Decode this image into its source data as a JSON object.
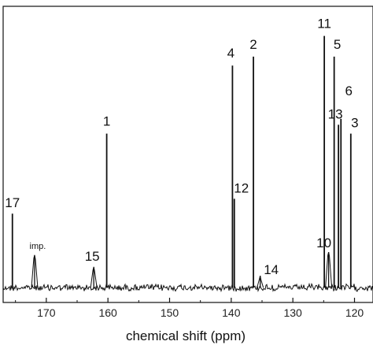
{
  "chart_data": {
    "type": "line",
    "title": "",
    "xlabel": "chemical shift (ppm)",
    "ylabel": "",
    "xlim": [
      177,
      117
    ],
    "x_reversed": true,
    "ylim": [
      0,
      1
    ],
    "grid": false,
    "legend": "none",
    "x_ticks": [
      170,
      160,
      150,
      140,
      130,
      120
    ],
    "baseline": 0.05,
    "series": [
      {
        "peaks": [
          {
            "label": "17",
            "x": 175.5,
            "height": 0.25
          },
          {
            "label": "imp.",
            "x": 171.9,
            "height": 0.11
          },
          {
            "label": "15",
            "x": 162.3,
            "height": 0.07
          },
          {
            "label": "1",
            "x": 160.2,
            "height": 0.52
          },
          {
            "label": "4",
            "x": 139.8,
            "height": 0.75
          },
          {
            "label": "12",
            "x": 139.5,
            "height": 0.3
          },
          {
            "label": "2",
            "x": 136.4,
            "height": 0.78
          },
          {
            "label": "14",
            "x": 135.3,
            "height": 0.04
          },
          {
            "label": "11",
            "x": 124.9,
            "height": 0.85
          },
          {
            "label": "10",
            "x": 124.2,
            "height": 0.12
          },
          {
            "label": "5",
            "x": 123.3,
            "height": 0.78
          },
          {
            "label": "13",
            "x": 122.6,
            "height": 0.55
          },
          {
            "label": "6",
            "x": 122.2,
            "height": 0.57
          },
          {
            "label": "3",
            "x": 120.6,
            "height": 0.52
          }
        ]
      }
    ]
  },
  "colors": {
    "trace": "#111111",
    "axis": "#111111",
    "background": "#ffffff"
  }
}
